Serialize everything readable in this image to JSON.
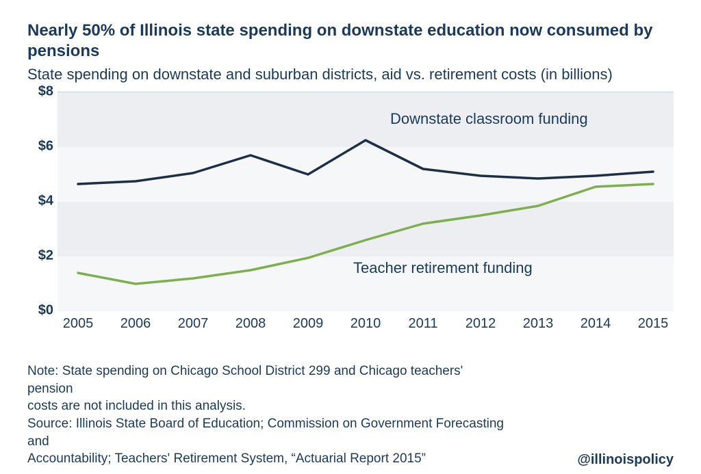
{
  "title": "Nearly 50% of Illinois state spending on downstate education now consumed by pensions",
  "subtitle": "State spending on downstate and suburban districts, aid vs. retirement costs (in billions)",
  "chart": {
    "type": "line",
    "background_color": "#ffffff",
    "band_colors": [
      "#eceef1",
      "#f6f7f8"
    ],
    "axis_line_color": "#9da6b2",
    "ylim": [
      0,
      8
    ],
    "ytick_step": 2,
    "y_prefix": "$",
    "yticks": [
      {
        "value": 0,
        "label": "$0"
      },
      {
        "value": 2,
        "label": "$2"
      },
      {
        "value": 4,
        "label": "$4"
      },
      {
        "value": 6,
        "label": "$6"
      },
      {
        "value": 8,
        "label": "$8"
      }
    ],
    "x_categories": [
      "2005",
      "2006",
      "2007",
      "2008",
      "2009",
      "2010",
      "2011",
      "2012",
      "2013",
      "2014",
      "2015"
    ],
    "series": [
      {
        "name": "Downstate classroom funding",
        "label": "Downstate classroom funding",
        "color": "#1d2f46",
        "line_width": 3.5,
        "values": [
          4.65,
          4.75,
          5.05,
          5.7,
          5.0,
          6.25,
          5.2,
          4.95,
          4.85,
          4.95,
          5.1
        ],
        "label_x_pct": 54,
        "label_y_val": 7.0
      },
      {
        "name": "Teacher retirement funding",
        "label": "Teacher retirement funding",
        "color": "#7bb04d",
        "line_width": 3.5,
        "values": [
          1.4,
          1.0,
          1.2,
          1.5,
          1.95,
          2.6,
          3.2,
          3.5,
          3.85,
          4.55,
          4.65
        ],
        "label_x_pct": 48,
        "label_y_val": 1.55
      }
    ],
    "title_fontsize": 24,
    "subtitle_fontsize": 22,
    "axis_label_fontsize": 20,
    "series_label_fontsize": 22
  },
  "footer": {
    "note_line1": "Note: State spending on Chicago School District 299 and Chicago teachers' pension",
    "note_line2": "costs are not included in this analysis.",
    "source_line1": "Source: Illinois State Board of Education; Commission on Government Forecasting and",
    "source_line2": "Accountability; Teachers' Retirement System, “Actuarial Report 2015”",
    "handle": "@illinoispolicy"
  },
  "colors": {
    "text": "#1a3a5c",
    "bold_text": "#1a3a5c"
  }
}
